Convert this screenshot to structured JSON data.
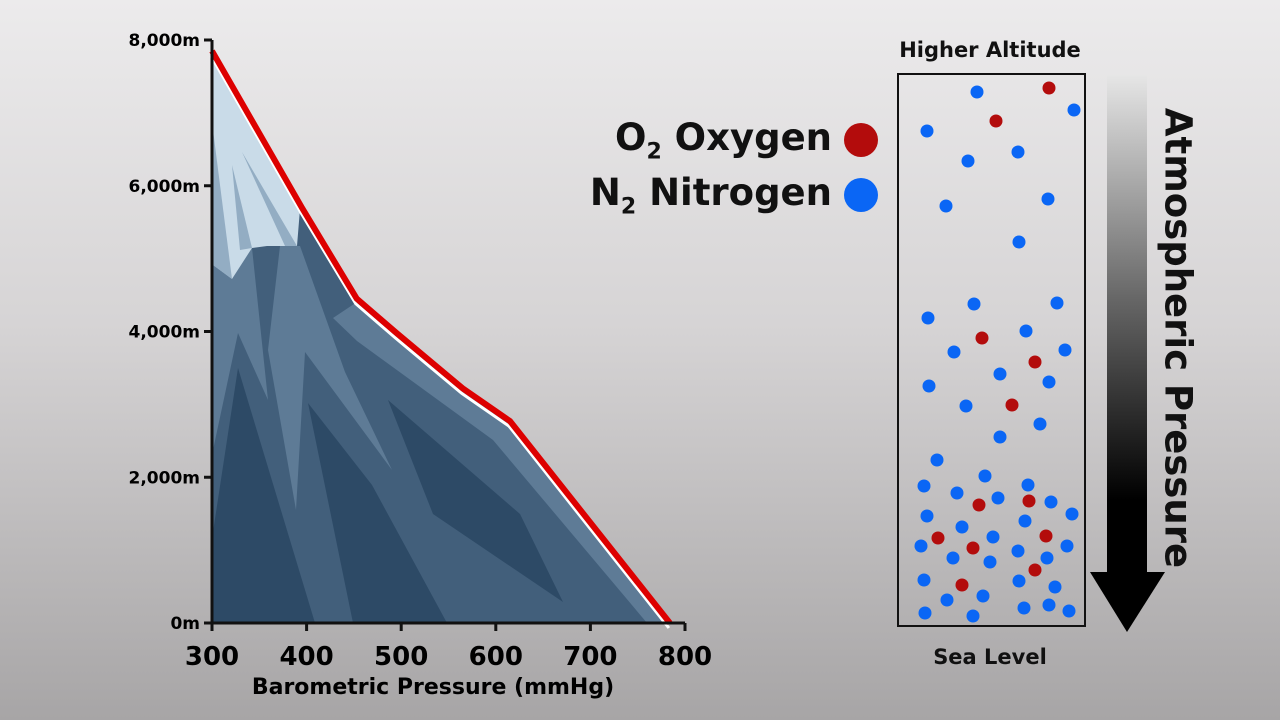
{
  "chart_data": {
    "type": "area",
    "title": "",
    "xlabel": "Barometric Pressure (mmHg)",
    "ylabel": "",
    "xlim": [
      300,
      800
    ],
    "ylim": [
      0,
      8000
    ],
    "x_ticks": [
      "300",
      "400",
      "500",
      "600",
      "700",
      "800"
    ],
    "y_ticks": [
      "0m",
      "2,000m",
      "4,000m",
      "6,000m",
      "8,000m"
    ],
    "grid": false,
    "series": [
      {
        "x": [
          300,
          395,
          453,
          495,
          565,
          615,
          784
        ],
        "y": [
          7850,
          5700,
          4450,
          3980,
          3220,
          2770,
          0
        ]
      }
    ],
    "line_color": "#dd0000"
  },
  "legend": {
    "oxygen": {
      "formula": "O",
      "sub": "2",
      "label": "Oxygen",
      "color": "#b30c0c"
    },
    "nitrogen": {
      "formula": "N",
      "sub": "2",
      "label": "Nitrogen",
      "color": "#0a66f5"
    }
  },
  "column": {
    "top_label": "Higher Altitude",
    "bottom_label": "Sea Level",
    "arrow_label": "Atmospheric Pressure"
  }
}
